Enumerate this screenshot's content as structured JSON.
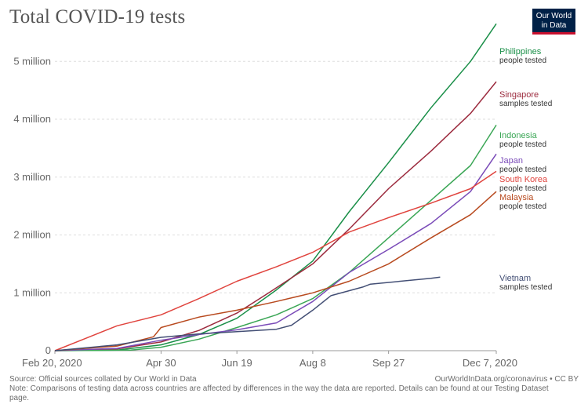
{
  "header": {
    "title": "Total COVID-19 tests",
    "logo_line1": "Our World",
    "logo_line2": "in Data"
  },
  "footer": {
    "source": "Source: Official sources collated by Our World in Data",
    "credit": "OurWorldInData.org/coronavirus • CC BY",
    "note": "Note: Comparisons of testing data across countries are affected by differences in the way the data are reported. Details can be found at our Testing Dataset page."
  },
  "chart_data": {
    "type": "line",
    "title": "Total COVID-19 tests",
    "x_tick_labels": [
      "Feb 20, 2020",
      "Apr 30",
      "Jun 19",
      "Aug 8",
      "Sep 27",
      "Dec 7, 2020"
    ],
    "x_tick_dates": [
      "2020-02-20",
      "2020-04-30",
      "2020-06-19",
      "2020-08-08",
      "2020-09-27",
      "2020-12-07"
    ],
    "y_ticks": [
      0,
      1000000,
      2000000,
      3000000,
      4000000,
      5000000
    ],
    "y_tick_labels": [
      "0",
      "1 million",
      "2 million",
      "3 million",
      "4 million",
      "5 million"
    ],
    "ylim": [
      0,
      5600000
    ],
    "grid": "horizontal dashed",
    "legend": "right, end of lines",
    "series": [
      {
        "name": "Philippines",
        "sublabel": "people tested",
        "color": "#1a8f48",
        "points": [
          [
            "2020-02-20",
            0
          ],
          [
            "2020-04-01",
            10000
          ],
          [
            "2020-04-30",
            100000
          ],
          [
            "2020-05-25",
            280000
          ],
          [
            "2020-06-19",
            560000
          ],
          [
            "2020-07-15",
            1050000
          ],
          [
            "2020-08-08",
            1550000
          ],
          [
            "2020-09-01",
            2400000
          ],
          [
            "2020-09-27",
            3250000
          ],
          [
            "2020-10-25",
            4200000
          ],
          [
            "2020-11-20",
            5000000
          ],
          [
            "2020-12-07",
            5650000
          ]
        ]
      },
      {
        "name": "Singapore",
        "sublabel": "samples tested",
        "color": "#9c2b3e",
        "points": [
          [
            "2020-02-20",
            0
          ],
          [
            "2020-04-01",
            30000
          ],
          [
            "2020-04-30",
            150000
          ],
          [
            "2020-05-25",
            350000
          ],
          [
            "2020-06-19",
            650000
          ],
          [
            "2020-07-10",
            1000000
          ],
          [
            "2020-08-08",
            1500000
          ],
          [
            "2020-09-01",
            2100000
          ],
          [
            "2020-09-27",
            2800000
          ],
          [
            "2020-10-25",
            3450000
          ],
          [
            "2020-11-20",
            4100000
          ],
          [
            "2020-12-07",
            4650000
          ]
        ]
      },
      {
        "name": "Indonesia",
        "sublabel": "people tested",
        "color": "#3aa655",
        "points": [
          [
            "2020-02-20",
            0
          ],
          [
            "2020-04-10",
            10000
          ],
          [
            "2020-04-30",
            60000
          ],
          [
            "2020-05-25",
            200000
          ],
          [
            "2020-06-19",
            400000
          ],
          [
            "2020-07-15",
            620000
          ],
          [
            "2020-08-08",
            900000
          ],
          [
            "2020-09-01",
            1350000
          ],
          [
            "2020-09-27",
            1950000
          ],
          [
            "2020-10-25",
            2600000
          ],
          [
            "2020-11-20",
            3200000
          ],
          [
            "2020-12-07",
            3900000
          ]
        ]
      },
      {
        "name": "Japan",
        "sublabel": "people tested",
        "color": "#7a4bb8",
        "points": [
          [
            "2020-02-20",
            0
          ],
          [
            "2020-04-01",
            40000
          ],
          [
            "2020-04-30",
            180000
          ],
          [
            "2020-05-25",
            280000
          ],
          [
            "2020-06-19",
            360000
          ],
          [
            "2020-07-15",
            480000
          ],
          [
            "2020-08-08",
            850000
          ],
          [
            "2020-09-01",
            1350000
          ],
          [
            "2020-09-27",
            1750000
          ],
          [
            "2020-10-25",
            2200000
          ],
          [
            "2020-11-20",
            2750000
          ],
          [
            "2020-12-07",
            3400000
          ]
        ]
      },
      {
        "name": "South Korea",
        "sublabel": "people tested",
        "color": "#e0443e",
        "points": [
          [
            "2020-02-20",
            0
          ],
          [
            "2020-03-10",
            200000
          ],
          [
            "2020-04-01",
            430000
          ],
          [
            "2020-04-30",
            620000
          ],
          [
            "2020-05-25",
            900000
          ],
          [
            "2020-06-19",
            1200000
          ],
          [
            "2020-07-15",
            1450000
          ],
          [
            "2020-08-08",
            1700000
          ],
          [
            "2020-09-01",
            2050000
          ],
          [
            "2020-09-27",
            2300000
          ],
          [
            "2020-10-25",
            2550000
          ],
          [
            "2020-11-20",
            2800000
          ],
          [
            "2020-12-07",
            3100000
          ]
        ]
      },
      {
        "name": "Malaysia",
        "sublabel": "people tested",
        "color": "#b84a1f",
        "points": [
          [
            "2020-02-20",
            0
          ],
          [
            "2020-04-01",
            80000
          ],
          [
            "2020-04-25",
            240000
          ],
          [
            "2020-04-30",
            400000
          ],
          [
            "2020-05-25",
            580000
          ],
          [
            "2020-06-19",
            700000
          ],
          [
            "2020-07-15",
            850000
          ],
          [
            "2020-08-08",
            1000000
          ],
          [
            "2020-09-01",
            1200000
          ],
          [
            "2020-09-27",
            1500000
          ],
          [
            "2020-10-25",
            1950000
          ],
          [
            "2020-11-20",
            2350000
          ],
          [
            "2020-12-07",
            2750000
          ]
        ]
      },
      {
        "name": "Vietnam",
        "sublabel": "samples tested",
        "color": "#434f75",
        "points": [
          [
            "2020-02-20",
            0
          ],
          [
            "2020-04-01",
            100000
          ],
          [
            "2020-04-30",
            230000
          ],
          [
            "2020-05-25",
            290000
          ],
          [
            "2020-06-19",
            330000
          ],
          [
            "2020-07-15",
            370000
          ],
          [
            "2020-07-25",
            440000
          ],
          [
            "2020-08-08",
            700000
          ],
          [
            "2020-08-20",
            950000
          ],
          [
            "2020-09-10",
            1100000
          ],
          [
            "2020-09-15",
            1150000
          ],
          [
            "2020-10-25",
            1250000
          ],
          [
            "2020-10-31",
            1270000
          ]
        ]
      }
    ]
  }
}
